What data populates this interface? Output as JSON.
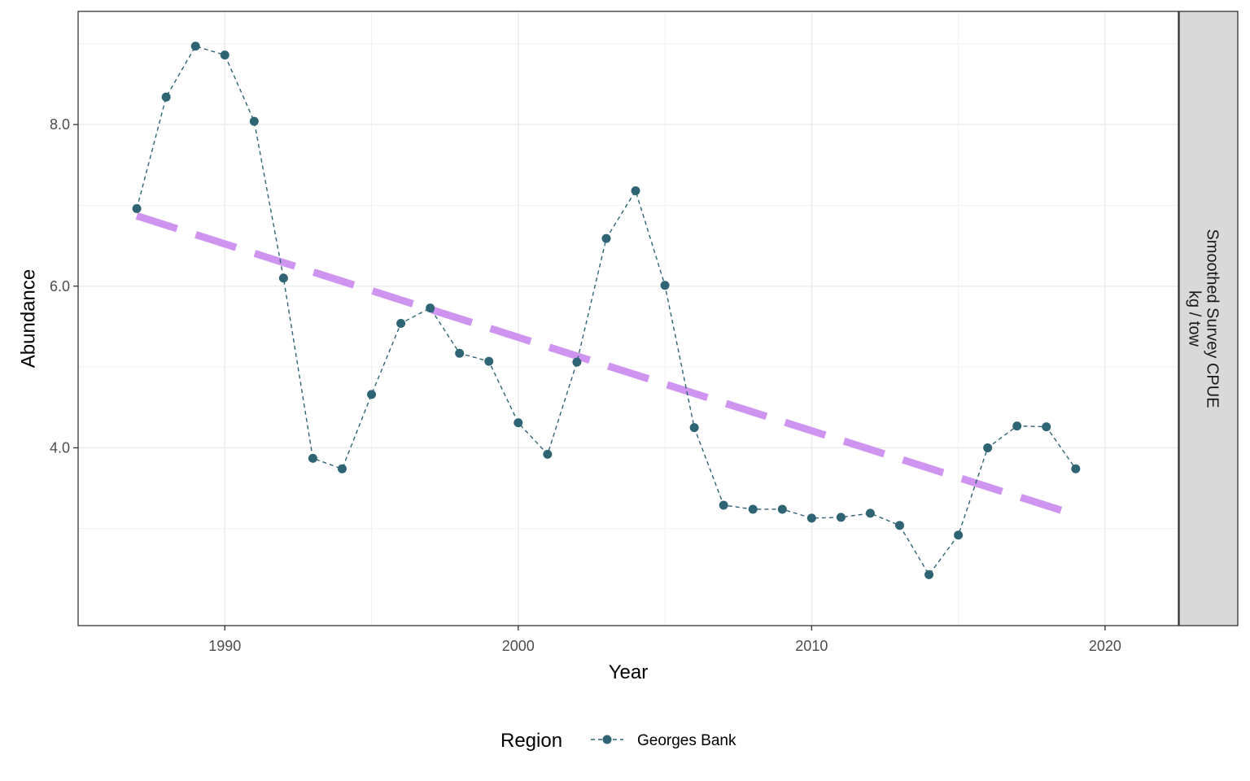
{
  "chart_data": {
    "type": "line",
    "xlabel": "Year",
    "ylabel": "Abundance",
    "xlim": [
      1985,
      2022.5
    ],
    "ylim": [
      1.8,
      9.4
    ],
    "x_ticks": [
      1990,
      2000,
      2010,
      2020
    ],
    "y_ticks": [
      4.0,
      6.0,
      8.0
    ],
    "y_tick_labels": [
      "4.0",
      "6.0",
      "8.0"
    ],
    "x_minor_ticks": [
      1985,
      1995,
      2005,
      2015
    ],
    "y_minor_ticks": [
      3.0,
      5.0,
      7.0,
      9.0
    ],
    "grid": true,
    "facet_strip": {
      "line1": "Smoothed Survey CPUE",
      "line2": "kg / tow"
    },
    "legend": {
      "title": "Region",
      "position": "bottom"
    },
    "series": [
      {
        "name": "Georges Bank",
        "color": "#2f6474",
        "style": "dashed-line-with-points",
        "x": [
          1987,
          1988,
          1989,
          1990,
          1991,
          1992,
          1993,
          1994,
          1995,
          1996,
          1997,
          1998,
          1999,
          2000,
          2001,
          2002,
          2003,
          2004,
          2005,
          2006,
          2007,
          2008,
          2009,
          2010,
          2011,
          2012,
          2013,
          2014,
          2015,
          2016,
          2017,
          2018,
          2019
        ],
        "y": [
          6.96,
          8.34,
          8.97,
          8.86,
          8.04,
          6.1,
          3.87,
          3.74,
          4.66,
          5.54,
          5.73,
          5.17,
          5.07,
          4.31,
          3.92,
          5.06,
          6.59,
          7.18,
          6.01,
          4.25,
          3.29,
          3.24,
          3.24,
          3.13,
          3.14,
          3.19,
          3.04,
          2.43,
          2.92,
          4.0,
          4.27,
          4.26,
          3.74
        ]
      }
    ],
    "trend": {
      "color": "#cc8ff0",
      "style": "long-dash",
      "x": [
        1987,
        2019
      ],
      "y": [
        6.87,
        3.17
      ]
    }
  }
}
